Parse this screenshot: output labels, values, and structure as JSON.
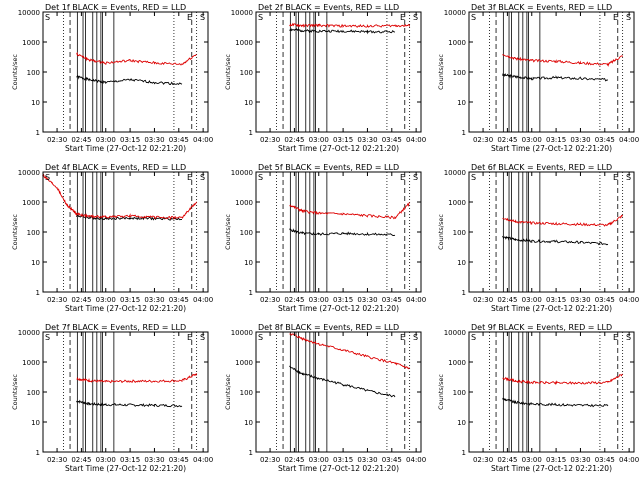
{
  "colors": {
    "events": "#000000",
    "lld": "#dd0000",
    "frame": "#000000",
    "background": "#ffffff"
  },
  "chart_data": [
    {
      "type": "line",
      "title": "Det 1f BLACK = Events, RED = LLD",
      "xlabel": "Start Time (27-Oct-12 02:21:20)",
      "ylabel": "Counts/sec",
      "x_ticks": [
        "02:30",
        "02:45",
        "03:00",
        "03:15",
        "03:30",
        "03:45",
        "04:00"
      ],
      "y_ticks": [
        "1",
        "10",
        "100",
        "1000",
        "10000"
      ],
      "xlim": [
        "02:21:20",
        "04:03:00"
      ],
      "ylim": [
        1,
        10000
      ],
      "y_scale": "log",
      "corner_labels": [
        "S",
        "E",
        "S"
      ],
      "series": [
        {
          "name": "Events",
          "color": "#000000",
          "x": [
            "02:36",
            "02:42",
            "02:50",
            "03:00",
            "03:15",
            "03:30",
            "03:47"
          ],
          "values": [
            null,
            70,
            55,
            45,
            55,
            45,
            40
          ]
        },
        {
          "name": "LLD",
          "color": "#dd0000",
          "x": [
            "02:36",
            "02:42",
            "02:50",
            "03:00",
            "03:15",
            "03:30",
            "03:47",
            "03:56"
          ],
          "values": [
            null,
            400,
            250,
            200,
            240,
            200,
            180,
            400
          ]
        }
      ]
    },
    {
      "type": "line",
      "title": "Det 2f BLACK = Events, RED = LLD",
      "xlabel": "Start Time (27-Oct-12 02:21:20)",
      "ylabel": "Counts/sec",
      "x_ticks": [
        "02:30",
        "02:45",
        "03:00",
        "03:15",
        "03:30",
        "03:45",
        "04:00"
      ],
      "y_ticks": [
        "1",
        "10",
        "100",
        "1000",
        "10000"
      ],
      "xlim": [
        "02:21:20",
        "04:03:00"
      ],
      "ylim": [
        1,
        10000
      ],
      "y_scale": "log",
      "corner_labels": [
        "S",
        "E",
        "S"
      ],
      "series": [
        {
          "name": "Events",
          "color": "#000000",
          "x": [
            "02:36",
            "02:42",
            "02:50",
            "03:00",
            "03:15",
            "03:30",
            "03:47"
          ],
          "values": [
            null,
            2600,
            2400,
            2300,
            2300,
            2200,
            2200
          ]
        },
        {
          "name": "LLD",
          "color": "#dd0000",
          "x": [
            "02:36",
            "02:42",
            "02:50",
            "03:00",
            "03:15",
            "03:30",
            "03:47",
            "03:56"
          ],
          "values": [
            null,
            3800,
            3500,
            3600,
            3400,
            3400,
            3500,
            3500
          ]
        }
      ]
    },
    {
      "type": "line",
      "title": "Det 3f BLACK = Events, RED = LLD",
      "xlabel": "Start Time (27-Oct-12 02:21:20)",
      "ylabel": "Counts/sec",
      "x_ticks": [
        "02:30",
        "02:45",
        "03:00",
        "03:15",
        "03:30",
        "03:45",
        "04:00"
      ],
      "y_ticks": [
        "1",
        "10",
        "100",
        "1000",
        "10000"
      ],
      "xlim": [
        "02:21:20",
        "04:03:00"
      ],
      "ylim": [
        1,
        10000
      ],
      "y_scale": "log",
      "corner_labels": [
        "S",
        "E",
        "S"
      ],
      "series": [
        {
          "name": "Events",
          "color": "#000000",
          "x": [
            "02:36",
            "02:42",
            "02:50",
            "03:00",
            "03:15",
            "03:30",
            "03:47"
          ],
          "values": [
            null,
            80,
            70,
            60,
            65,
            60,
            55
          ]
        },
        {
          "name": "LLD",
          "color": "#dd0000",
          "x": [
            "02:36",
            "02:42",
            "02:50",
            "03:00",
            "03:15",
            "03:30",
            "03:47",
            "03:56"
          ],
          "values": [
            null,
            400,
            280,
            240,
            230,
            200,
            180,
            350
          ]
        }
      ]
    },
    {
      "type": "line",
      "title": "Det 4f BLACK = Events, RED = LLD",
      "xlabel": "Start Time (27-Oct-12 02:21:20)",
      "ylabel": "Counts/sec",
      "x_ticks": [
        "02:30",
        "02:45",
        "03:00",
        "03:15",
        "03:30",
        "03:45",
        "04:00"
      ],
      "y_ticks": [
        "1",
        "10",
        "100",
        "1000",
        "10000"
      ],
      "xlim": [
        "02:21:20",
        "04:03:00"
      ],
      "ylim": [
        1,
        10000
      ],
      "y_scale": "log",
      "corner_labels": [
        "S",
        "E",
        "S"
      ],
      "series": [
        {
          "name": "Events",
          "color": "#000000",
          "x": [
            "02:36",
            "02:42",
            "02:50",
            "03:00",
            "03:15",
            "03:30",
            "03:47"
          ],
          "values": [
            null,
            350,
            300,
            280,
            290,
            280,
            270
          ]
        },
        {
          "name": "LLD",
          "color": "#dd0000",
          "x": [
            "02:21",
            "02:30",
            "02:36",
            "02:42",
            "02:50",
            "03:00",
            "03:15",
            "03:30",
            "03:47",
            "03:56"
          ],
          "values": [
            8000,
            3000,
            800,
            400,
            330,
            320,
            340,
            310,
            300,
            1000
          ]
        }
      ]
    },
    {
      "type": "line",
      "title": "Det 5f BLACK = Events, RED = LLD",
      "xlabel": "Start Time (27-Oct-12 02:21:20)",
      "ylabel": "Counts/sec",
      "x_ticks": [
        "02:30",
        "02:45",
        "03:00",
        "03:15",
        "03:30",
        "03:45",
        "04:00"
      ],
      "y_ticks": [
        "1",
        "10",
        "100",
        "1000",
        "10000"
      ],
      "xlim": [
        "02:21:20",
        "04:03:00"
      ],
      "ylim": [
        1,
        10000
      ],
      "y_scale": "log",
      "corner_labels": [
        "S",
        "E",
        "S"
      ],
      "series": [
        {
          "name": "Events",
          "color": "#000000",
          "x": [
            "02:36",
            "02:42",
            "02:50",
            "03:00",
            "03:15",
            "03:30",
            "03:47"
          ],
          "values": [
            null,
            120,
            90,
            85,
            90,
            85,
            80
          ]
        },
        {
          "name": "LLD",
          "color": "#dd0000",
          "x": [
            "02:36",
            "02:42",
            "02:50",
            "03:00",
            "03:15",
            "03:30",
            "03:47",
            "03:56"
          ],
          "values": [
            null,
            800,
            500,
            420,
            400,
            350,
            300,
            900
          ]
        }
      ]
    },
    {
      "type": "line",
      "title": "Det 6f BLACK = Events, RED = LLD",
      "xlabel": "Start Time (27-Oct-12 02:21:20)",
      "ylabel": "Counts/sec",
      "x_ticks": [
        "02:30",
        "02:45",
        "03:00",
        "03:15",
        "03:30",
        "03:45",
        "04:00"
      ],
      "y_ticks": [
        "1",
        "10",
        "100",
        "1000",
        "10000"
      ],
      "xlim": [
        "02:21:20",
        "04:03:00"
      ],
      "ylim": [
        1,
        10000
      ],
      "y_scale": "log",
      "corner_labels": [
        "S",
        "E",
        "S"
      ],
      "series": [
        {
          "name": "Events",
          "color": "#000000",
          "x": [
            "02:36",
            "02:42",
            "02:50",
            "03:00",
            "03:15",
            "03:30",
            "03:47"
          ],
          "values": [
            null,
            70,
            55,
            50,
            48,
            45,
            40
          ]
        },
        {
          "name": "LLD",
          "color": "#dd0000",
          "x": [
            "02:36",
            "02:42",
            "02:50",
            "03:00",
            "03:15",
            "03:30",
            "03:47",
            "03:56"
          ],
          "values": [
            null,
            300,
            220,
            200,
            190,
            180,
            170,
            350
          ]
        }
      ]
    },
    {
      "type": "line",
      "title": "Det 7f BLACK = Events, RED = LLD",
      "xlabel": "Start Time (27-Oct-12 02:21:20)",
      "ylabel": "Counts/sec",
      "x_ticks": [
        "02:30",
        "02:45",
        "03:00",
        "03:15",
        "03:30",
        "03:45",
        "04:00"
      ],
      "y_ticks": [
        "1",
        "10",
        "100",
        "1000",
        "10000"
      ],
      "xlim": [
        "02:21:20",
        "04:03:00"
      ],
      "ylim": [
        1,
        10000
      ],
      "y_scale": "log",
      "corner_labels": [
        "S",
        "E",
        "S"
      ],
      "series": [
        {
          "name": "Events",
          "color": "#000000",
          "x": [
            "02:36",
            "02:42",
            "02:50",
            "03:00",
            "03:15",
            "03:30",
            "03:47"
          ],
          "values": [
            null,
            50,
            40,
            38,
            37,
            36,
            35
          ]
        },
        {
          "name": "LLD",
          "color": "#dd0000",
          "x": [
            "02:36",
            "02:42",
            "02:50",
            "03:00",
            "03:15",
            "03:30",
            "03:47",
            "03:56"
          ],
          "values": [
            null,
            280,
            240,
            220,
            230,
            230,
            240,
            400
          ]
        }
      ]
    },
    {
      "type": "line",
      "title": "Det 8f BLACK = Events, RED = LLD",
      "xlabel": "Start Time (27-Oct-12 02:21:20)",
      "ylabel": "Counts/sec",
      "x_ticks": [
        "02:30",
        "02:45",
        "03:00",
        "03:15",
        "03:30",
        "03:45",
        "04:00"
      ],
      "y_ticks": [
        "1",
        "10",
        "100",
        "1000",
        "10000"
      ],
      "xlim": [
        "02:21:20",
        "04:03:00"
      ],
      "ylim": [
        1,
        10000
      ],
      "y_scale": "log",
      "corner_labels": [
        "S",
        "E",
        "S"
      ],
      "series": [
        {
          "name": "Events",
          "color": "#000000",
          "x": [
            "02:36",
            "02:42",
            "02:50",
            "03:00",
            "03:15",
            "03:30",
            "03:47"
          ],
          "values": [
            null,
            700,
            400,
            280,
            180,
            110,
            70
          ]
        },
        {
          "name": "LLD",
          "color": "#dd0000",
          "x": [
            "02:36",
            "02:42",
            "02:50",
            "03:00",
            "03:15",
            "03:30",
            "03:47",
            "03:56"
          ],
          "values": [
            null,
            9000,
            6000,
            4000,
            2500,
            1500,
            900,
            600
          ]
        }
      ]
    },
    {
      "type": "line",
      "title": "Det 9f BLACK = Events, RED = LLD",
      "xlabel": "Start Time (27-Oct-12 02:21:20)",
      "ylabel": "Counts/sec",
      "x_ticks": [
        "02:30",
        "02:45",
        "03:00",
        "03:15",
        "03:30",
        "03:45",
        "04:00"
      ],
      "y_ticks": [
        "1",
        "10",
        "100",
        "1000",
        "10000"
      ],
      "xlim": [
        "02:21:20",
        "04:03:00"
      ],
      "ylim": [
        1,
        10000
      ],
      "y_scale": "log",
      "corner_labels": [
        "S",
        "E",
        "S"
      ],
      "series": [
        {
          "name": "Events",
          "color": "#000000",
          "x": [
            "02:36",
            "02:42",
            "02:50",
            "03:00",
            "03:15",
            "03:30",
            "03:47"
          ],
          "values": [
            null,
            60,
            45,
            40,
            38,
            36,
            35
          ]
        },
        {
          "name": "LLD",
          "color": "#dd0000",
          "x": [
            "02:36",
            "02:42",
            "02:50",
            "03:00",
            "03:15",
            "03:30",
            "03:47",
            "03:56"
          ],
          "values": [
            null,
            300,
            230,
            210,
            200,
            200,
            210,
            400
          ]
        }
      ]
    }
  ]
}
